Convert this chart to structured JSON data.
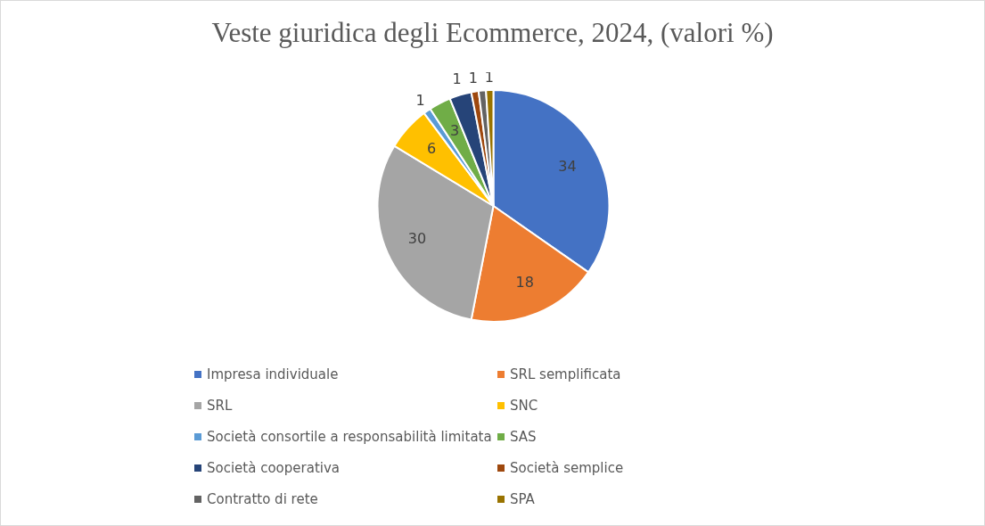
{
  "chart_data": {
    "type": "pie",
    "title": "Veste giuridica degli Ecommerce, 2024, (valori %)",
    "categories": [
      "Impresa individuale",
      "SRL semplificata",
      "SRL",
      "SNC",
      "Società consortile a responsabilità limitata",
      "SAS",
      "Società cooperativa",
      "Società semplice",
      "Contratto di rete",
      "SPA"
    ],
    "values": [
      34,
      18,
      30,
      6,
      1,
      3,
      3,
      1,
      1,
      1
    ],
    "value_labels": [
      "34",
      "18",
      "30",
      "6",
      "1",
      "3",
      null,
      "1",
      "1",
      "1"
    ],
    "colors": [
      "#4472c4",
      "#ed7d31",
      "#a5a5a5",
      "#ffc000",
      "#5b9bd5",
      "#70ad47",
      "#264478",
      "#9e480e",
      "#636363",
      "#997300"
    ],
    "legend": "bottom"
  }
}
